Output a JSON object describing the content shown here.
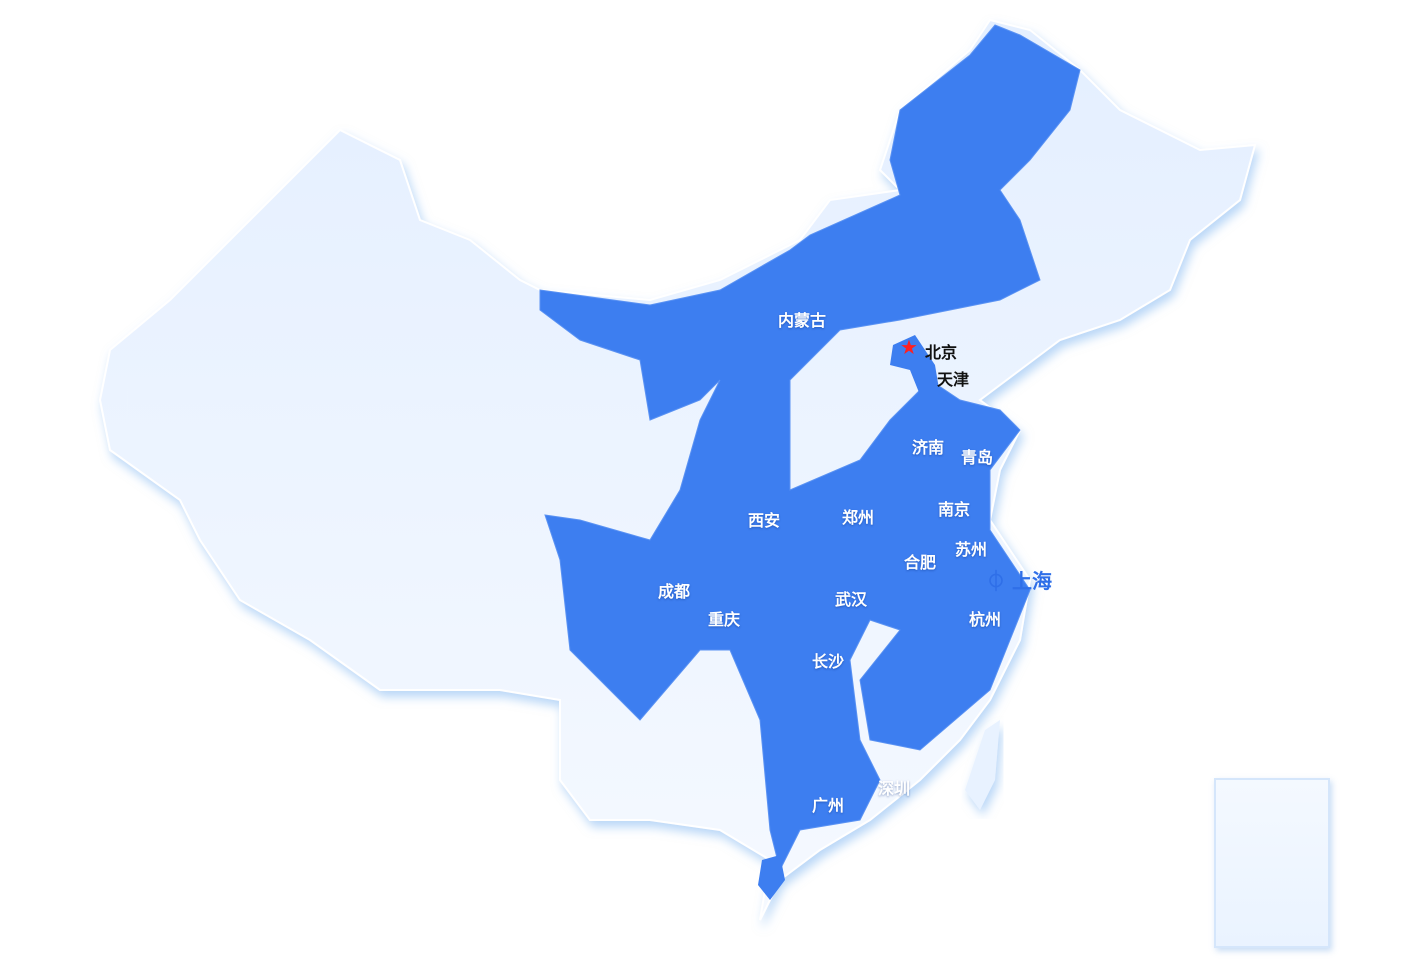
{
  "map": {
    "highlight_color": "#3d7ef0",
    "base_color": "#eef5ff",
    "capital_marker_color": "#ff2020",
    "capital_icon": "star-icon",
    "shanghai_icon": "location-logo-icon",
    "labels": {
      "neimenggu": "内蒙古",
      "beijing": "北京",
      "tianjin": "天津",
      "jinan": "济南",
      "qingdao": "青岛",
      "xian": "西安",
      "zhengzhou": "郑州",
      "nanjing": "南京",
      "suzhou": "苏州",
      "hefei": "合肥",
      "shanghai": "上海",
      "chengdu": "成都",
      "chongqing": "重庆",
      "wuhan": "武汉",
      "hangzhou": "杭州",
      "changsha": "长沙",
      "guangzhou": "广州",
      "shenzhen": "深圳"
    }
  }
}
